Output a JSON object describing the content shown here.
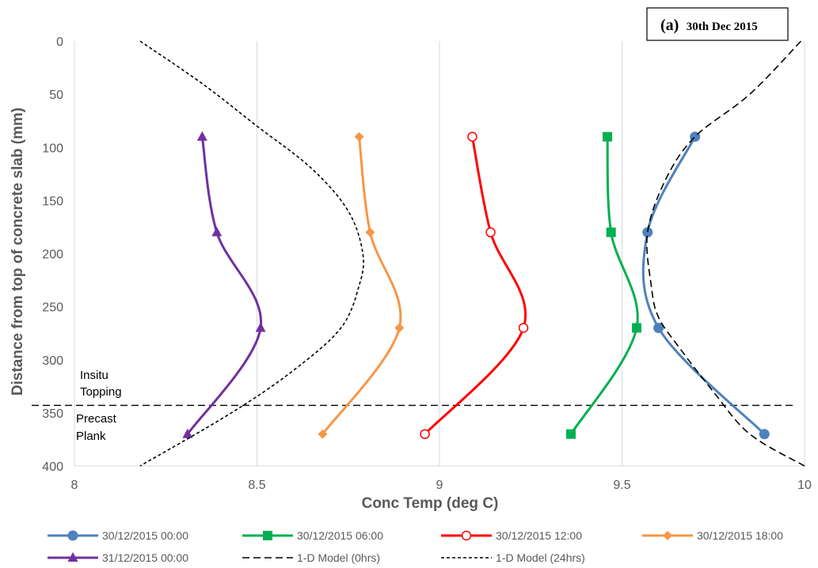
{
  "chart_data": {
    "type": "line",
    "title_letter": "(a)",
    "title_date": "30th Dec 2015",
    "xlabel": "Conc Temp (deg C)",
    "ylabel": "Distance from top of concrete slab (mm)",
    "xlim": [
      8,
      10
    ],
    "ylim": [
      400,
      0
    ],
    "x_ticks": [
      "8",
      "8.5",
      "9",
      "9.5",
      "10"
    ],
    "y_ticks": [
      "0",
      "50",
      "100",
      "150",
      "200",
      "250",
      "300",
      "350",
      "400"
    ],
    "grid": "vertical",
    "legend_position": "bottom",
    "annotations": {
      "topping_line1": "Insitu",
      "topping_line2": "Topping",
      "plank_line1": "Precast",
      "plank_line2": "Plank"
    },
    "interface_line": {
      "y": 343
    },
    "series": [
      {
        "name": "30/12/2015 00:00",
        "color": "#4f81bd",
        "marker": "circle",
        "points": [
          [
            9.7,
            90
          ],
          [
            9.57,
            180
          ],
          [
            9.6,
            270
          ],
          [
            9.89,
            370
          ]
        ]
      },
      {
        "name": "30/12/2015 06:00",
        "color": "#00b050",
        "marker": "square",
        "points": [
          [
            9.46,
            90
          ],
          [
            9.47,
            180
          ],
          [
            9.54,
            270
          ],
          [
            9.36,
            370
          ]
        ]
      },
      {
        "name": "30/12/2015 12:00",
        "color": "#ff0000",
        "marker": "open-circle",
        "points": [
          [
            9.09,
            90
          ],
          [
            9.14,
            180
          ],
          [
            9.23,
            270
          ],
          [
            8.96,
            370
          ]
        ]
      },
      {
        "name": "30/12/2015 18:00",
        "color": "#f79646",
        "marker": "diamond",
        "points": [
          [
            8.78,
            90
          ],
          [
            8.81,
            180
          ],
          [
            8.89,
            270
          ],
          [
            8.68,
            370
          ]
        ]
      },
      {
        "name": "31/12/2015 00:00",
        "color": "#7030a0",
        "marker": "triangle",
        "points": [
          [
            8.35,
            90
          ],
          [
            8.39,
            180
          ],
          [
            8.51,
            270
          ],
          [
            8.31,
            370
          ]
        ]
      },
      {
        "name": "1-D Model (0hrs)",
        "color": "#000000",
        "marker": "none",
        "dash": "long",
        "points": [
          [
            9.99,
            0
          ],
          [
            9.85,
            50
          ],
          [
            9.7,
            90
          ],
          [
            9.62,
            130
          ],
          [
            9.57,
            180
          ],
          [
            9.58,
            230
          ],
          [
            9.6,
            260
          ],
          [
            9.66,
            290
          ],
          [
            9.75,
            330
          ],
          [
            9.85,
            370
          ],
          [
            10.0,
            400
          ]
        ]
      },
      {
        "name": "1-D Model (24hrs)",
        "color": "#000000",
        "marker": "none",
        "dash": "short",
        "points": [
          [
            8.18,
            0
          ],
          [
            8.35,
            40
          ],
          [
            8.5,
            80
          ],
          [
            8.65,
            120
          ],
          [
            8.75,
            160
          ],
          [
            8.79,
            200
          ],
          [
            8.78,
            230
          ],
          [
            8.73,
            270
          ],
          [
            8.6,
            310
          ],
          [
            8.43,
            350
          ],
          [
            8.18,
            400
          ]
        ]
      }
    ]
  }
}
